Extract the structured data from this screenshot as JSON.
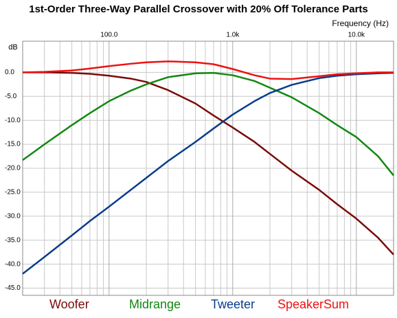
{
  "chart_data": {
    "type": "line",
    "title": "1st-Order Three-Way Parallel Crossover with 20% Off Tolerance Parts",
    "x_label": "Frequency  (Hz)",
    "y_label": "dB",
    "x_scale": "log",
    "grid": true,
    "legend": "bottom",
    "xlim": [
      20,
      20000
    ],
    "xticks": [
      {
        "value": 100,
        "label": "100.0"
      },
      {
        "value": 1000,
        "label": "1.0k"
      },
      {
        "value": 10000,
        "label": "10.0k"
      }
    ],
    "xminorticks": [
      20,
      30,
      40,
      50,
      60,
      70,
      80,
      90,
      200,
      300,
      400,
      500,
      600,
      700,
      800,
      900,
      2000,
      3000,
      4000,
      5000,
      6000,
      7000,
      8000,
      9000,
      20000
    ],
    "ylim": [
      -46.5,
      6.5
    ],
    "yticks": [
      {
        "value": 0,
        "label": "0.0"
      },
      {
        "value": -5,
        "label": "-5.0"
      },
      {
        "value": -10,
        "label": "-10.0"
      },
      {
        "value": -15,
        "label": "-15.0"
      },
      {
        "value": -20,
        "label": "-20.0"
      },
      {
        "value": -25,
        "label": "-25.0"
      },
      {
        "value": -30,
        "label": "-30.0"
      },
      {
        "value": -35,
        "label": "-35.0"
      },
      {
        "value": -40,
        "label": "-40.0"
      },
      {
        "value": -45,
        "label": "-45.0"
      }
    ],
    "x": [
      20,
      30,
      50,
      70,
      100,
      150,
      200,
      300,
      500,
      700,
      1000,
      1500,
      2000,
      3000,
      5000,
      7000,
      10000,
      15000,
      20000
    ],
    "series": [
      {
        "name": "Woofer",
        "color": "#7a0a0a",
        "values": [
          0,
          0,
          -0.1,
          -0.3,
          -0.7,
          -1.3,
          -2,
          -3.7,
          -6.5,
          -9,
          -11.5,
          -14.5,
          -17,
          -20.5,
          -24.5,
          -27.5,
          -30.5,
          -34.5,
          -38
        ]
      },
      {
        "name": "Midrange",
        "color": "#118811",
        "values": [
          -18.3,
          -15,
          -11,
          -8.5,
          -6,
          -3.8,
          -2.5,
          -1,
          -0.2,
          -0.1,
          -0.6,
          -1.8,
          -3.2,
          -5.2,
          -8.5,
          -11,
          -13.5,
          -17.5,
          -21.5
        ]
      },
      {
        "name": "Tweeter",
        "color": "#0a3c8a",
        "values": [
          -42,
          -38.5,
          -34,
          -31,
          -28,
          -24.5,
          -22,
          -18.5,
          -14.5,
          -11.7,
          -8.8,
          -6,
          -4.3,
          -2.6,
          -1.2,
          -0.7,
          -0.4,
          -0.2,
          -0.1
        ]
      },
      {
        "name": "SpeakerSum",
        "color": "#ee1111",
        "values": [
          0,
          0.1,
          0.4,
          0.8,
          1.3,
          1.8,
          2.1,
          2.3,
          2.1,
          1.7,
          0.7,
          -0.6,
          -1.3,
          -1.4,
          -0.8,
          -0.4,
          -0.2,
          0,
          0
        ]
      }
    ]
  }
}
